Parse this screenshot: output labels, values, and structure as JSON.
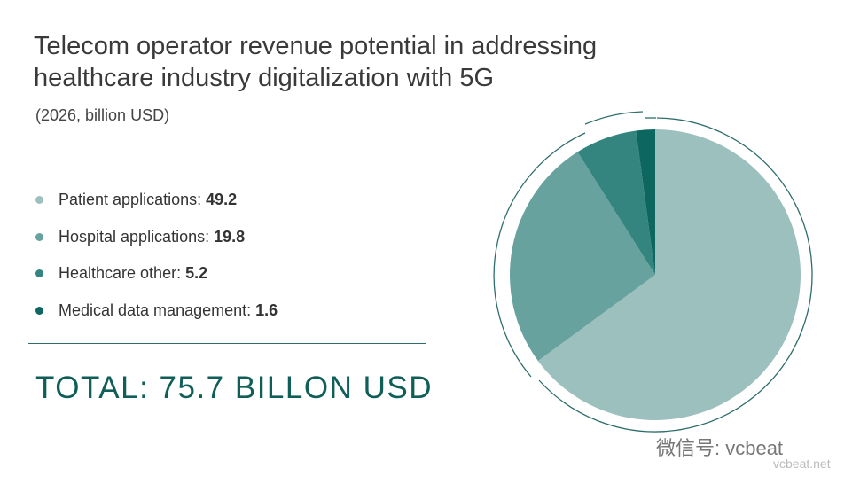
{
  "chart_data": {
    "type": "pie",
    "title": "Telecom operator revenue potential in addressing healthcare industry digitalization with 5G",
    "subtitle": "(2026, billion USD)",
    "series": [
      {
        "name": "Patient applications",
        "value": 49.2,
        "color": "#9bc0bd"
      },
      {
        "name": "Hospital applications",
        "value": 19.8,
        "color": "#68a29f"
      },
      {
        "name": "Healthcare other",
        "value": 5.2,
        "color": "#348580"
      },
      {
        "name": "Medical data management",
        "value": 1.6,
        "color": "#0e6660"
      }
    ],
    "legend_position": "left",
    "total": "TOTAL: 75.7 BILLON USD"
  },
  "watermark": {
    "text": "微信号: vcbeat",
    "site": "vcbeat.net"
  }
}
